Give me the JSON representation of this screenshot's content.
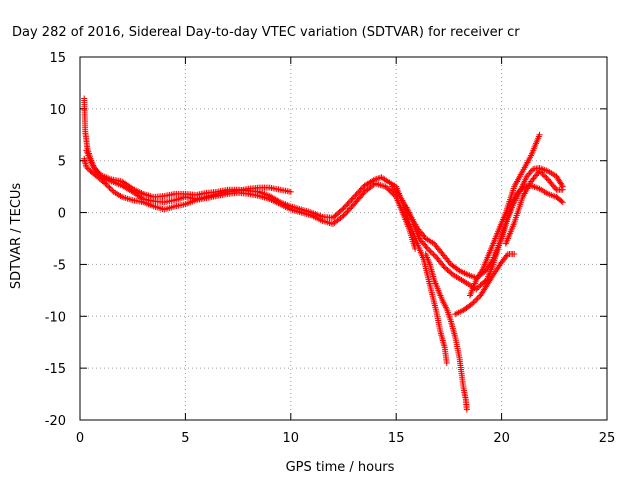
{
  "chart_data": {
    "type": "scatter",
    "title": "Day 282 of 2016, Sidereal Day-to-day VTEC variation (SDTVAR) for receiver cr",
    "xlabel": "GPS time / hours",
    "ylabel": "SDTVAR / TECUs",
    "xlim": [
      0,
      25
    ],
    "ylim": [
      -20,
      15
    ],
    "x_ticks": [
      0,
      5,
      10,
      15,
      20,
      25
    ],
    "y_ticks": [
      -20,
      -15,
      -10,
      -5,
      0,
      5,
      10,
      15
    ],
    "grid": true,
    "marker": "+",
    "color": "#ff0000",
    "series": [
      {
        "points": [
          [
            0.2,
            11.0
          ],
          [
            0.25,
            7.8
          ],
          [
            0.3,
            7.0
          ],
          [
            0.35,
            6.2
          ],
          [
            0.5,
            5.2
          ],
          [
            0.7,
            4.2
          ],
          [
            1.0,
            3.4
          ],
          [
            1.5,
            3.0
          ],
          [
            2.0,
            2.6
          ],
          [
            2.5,
            2.0
          ],
          [
            3.0,
            1.3
          ],
          [
            3.5,
            1.1
          ],
          [
            4.0,
            1.0
          ],
          [
            4.5,
            1.2
          ],
          [
            5.0,
            1.5
          ],
          [
            5.5,
            1.3
          ],
          [
            6.0,
            1.5
          ],
          [
            6.5,
            1.8
          ],
          [
            7.0,
            2.0
          ],
          [
            7.5,
            2.1
          ],
          [
            8.0,
            2.3
          ],
          [
            8.5,
            2.4
          ],
          [
            9.0,
            2.4
          ],
          [
            9.5,
            2.2
          ],
          [
            10.0,
            2.0
          ]
        ]
      },
      {
        "points": [
          [
            0.2,
            5.2
          ],
          [
            0.3,
            4.4
          ],
          [
            0.5,
            4.0
          ],
          [
            0.8,
            3.5
          ],
          [
            1.2,
            2.8
          ],
          [
            1.6,
            2.0
          ],
          [
            2.0,
            1.5
          ],
          [
            2.5,
            1.2
          ],
          [
            3.0,
            1.0
          ],
          [
            3.5,
            0.6
          ],
          [
            4.0,
            0.3
          ],
          [
            4.5,
            0.6
          ],
          [
            5.0,
            0.8
          ],
          [
            5.5,
            1.2
          ],
          [
            6.0,
            1.4
          ],
          [
            6.5,
            1.6
          ],
          [
            7.0,
            1.8
          ],
          [
            7.5,
            1.9
          ],
          [
            8.0,
            1.8
          ],
          [
            8.5,
            1.6
          ],
          [
            9.0,
            1.3
          ],
          [
            9.5,
            0.8
          ],
          [
            10.0,
            0.3
          ],
          [
            10.5,
            0.0
          ],
          [
            11.0,
            -0.3
          ],
          [
            11.5,
            -0.8
          ],
          [
            12.0,
            -1.1
          ],
          [
            12.5,
            -0.3
          ],
          [
            13.0,
            0.8
          ],
          [
            13.5,
            2.0
          ],
          [
            14.0,
            2.8
          ],
          [
            14.5,
            2.5
          ],
          [
            15.0,
            1.5
          ],
          [
            15.3,
            0.0
          ],
          [
            15.6,
            -1.5
          ],
          [
            15.9,
            -3.5
          ]
        ]
      },
      {
        "points": [
          [
            0.3,
            6.0
          ],
          [
            0.6,
            4.5
          ],
          [
            1.0,
            3.6
          ],
          [
            1.5,
            3.2
          ],
          [
            2.0,
            3.0
          ],
          [
            2.5,
            2.3
          ],
          [
            3.0,
            1.8
          ],
          [
            3.5,
            1.5
          ],
          [
            4.0,
            1.6
          ],
          [
            4.5,
            1.8
          ],
          [
            5.0,
            1.8
          ],
          [
            5.5,
            1.7
          ],
          [
            6.0,
            1.9
          ],
          [
            6.5,
            2.0
          ],
          [
            7.0,
            2.2
          ],
          [
            7.5,
            2.2
          ],
          [
            8.0,
            2.1
          ],
          [
            8.5,
            2.0
          ],
          [
            9.0,
            1.6
          ],
          [
            9.5,
            1.0
          ],
          [
            10.0,
            0.6
          ],
          [
            10.5,
            0.3
          ],
          [
            11.0,
            0.0
          ],
          [
            11.5,
            -0.4
          ],
          [
            12.0,
            -0.5
          ],
          [
            12.5,
            0.4
          ],
          [
            13.0,
            1.5
          ],
          [
            13.5,
            2.6
          ],
          [
            14.0,
            3.2
          ],
          [
            14.3,
            3.4
          ],
          [
            14.6,
            3.0
          ],
          [
            15.0,
            2.5
          ],
          [
            15.3,
            1.0
          ],
          [
            15.6,
            -1.0
          ],
          [
            16.0,
            -3.0
          ],
          [
            16.3,
            -4.5
          ],
          [
            16.6,
            -7.0
          ],
          [
            16.9,
            -9.5
          ],
          [
            17.1,
            -11.5
          ],
          [
            17.3,
            -13.0
          ],
          [
            17.4,
            -14.5
          ]
        ]
      },
      {
        "points": [
          [
            14.8,
            2.5
          ],
          [
            15.2,
            1.5
          ],
          [
            15.6,
            0.0
          ],
          [
            16.0,
            -1.5
          ],
          [
            16.4,
            -2.5
          ],
          [
            16.8,
            -3.0
          ],
          [
            17.2,
            -4.0
          ],
          [
            17.6,
            -5.0
          ],
          [
            18.0,
            -5.6
          ],
          [
            18.4,
            -6.0
          ],
          [
            18.8,
            -6.3
          ],
          [
            19.0,
            -6.0
          ],
          [
            19.3,
            -5.5
          ],
          [
            19.6,
            -4.5
          ],
          [
            20.0,
            -2.5
          ],
          [
            20.3,
            -0.5
          ],
          [
            20.6,
            1.0
          ],
          [
            20.9,
            2.2
          ],
          [
            21.2,
            3.5
          ],
          [
            21.5,
            4.2
          ],
          [
            21.8,
            4.3
          ],
          [
            22.2,
            4.0
          ],
          [
            22.6,
            3.5
          ],
          [
            22.9,
            2.5
          ]
        ]
      },
      {
        "points": [
          [
            15.5,
            0.5
          ],
          [
            15.8,
            -1.0
          ],
          [
            16.1,
            -2.5
          ],
          [
            16.5,
            -3.5
          ],
          [
            16.9,
            -4.3
          ],
          [
            17.3,
            -5.3
          ],
          [
            17.7,
            -6.0
          ],
          [
            18.1,
            -6.5
          ],
          [
            18.5,
            -7.0
          ],
          [
            18.8,
            -7.4
          ],
          [
            19.0,
            -7.0
          ],
          [
            19.3,
            -6.5
          ],
          [
            19.6,
            -5.0
          ],
          [
            19.9,
            -3.0
          ],
          [
            20.2,
            -1.0
          ],
          [
            20.5,
            1.0
          ],
          [
            20.8,
            2.0
          ],
          [
            21.1,
            2.5
          ],
          [
            21.4,
            2.6
          ],
          [
            21.8,
            2.3
          ],
          [
            22.2,
            1.8
          ],
          [
            22.6,
            1.5
          ],
          [
            22.9,
            1.0
          ]
        ]
      },
      {
        "points": [
          [
            16.4,
            -4.0
          ],
          [
            16.6,
            -5.0
          ],
          [
            16.8,
            -6.5
          ],
          [
            17.0,
            -7.5
          ],
          [
            17.2,
            -8.5
          ],
          [
            17.4,
            -9.3
          ],
          [
            17.6,
            -10.5
          ],
          [
            17.8,
            -12.0
          ],
          [
            18.0,
            -14.0
          ],
          [
            18.1,
            -15.5
          ],
          [
            18.2,
            -17.0
          ],
          [
            18.3,
            -18.0
          ],
          [
            18.35,
            -19.0
          ]
        ]
      },
      {
        "points": [
          [
            17.8,
            -9.8
          ],
          [
            18.2,
            -9.4
          ],
          [
            18.6,
            -8.8
          ],
          [
            19.0,
            -8.0
          ],
          [
            19.3,
            -7.0
          ],
          [
            19.6,
            -6.0
          ],
          [
            20.0,
            -4.8
          ],
          [
            20.3,
            -4.0
          ],
          [
            20.6,
            -4.0
          ]
        ]
      },
      {
        "points": [
          [
            18.5,
            -8.0
          ],
          [
            18.8,
            -6.5
          ],
          [
            19.1,
            -5.5
          ],
          [
            19.4,
            -4.0
          ],
          [
            19.8,
            -2.0
          ],
          [
            20.2,
            0.0
          ],
          [
            20.6,
            2.5
          ],
          [
            21.0,
            4.0
          ],
          [
            21.4,
            5.5
          ],
          [
            21.8,
            7.5
          ]
        ]
      },
      {
        "points": [
          [
            20.2,
            -3.0
          ],
          [
            20.6,
            -1.0
          ],
          [
            21.0,
            1.5
          ],
          [
            21.4,
            3.0
          ],
          [
            21.8,
            4.0
          ],
          [
            22.2,
            3.2
          ],
          [
            22.6,
            2.2
          ],
          [
            22.9,
            2.2
          ]
        ]
      }
    ]
  }
}
